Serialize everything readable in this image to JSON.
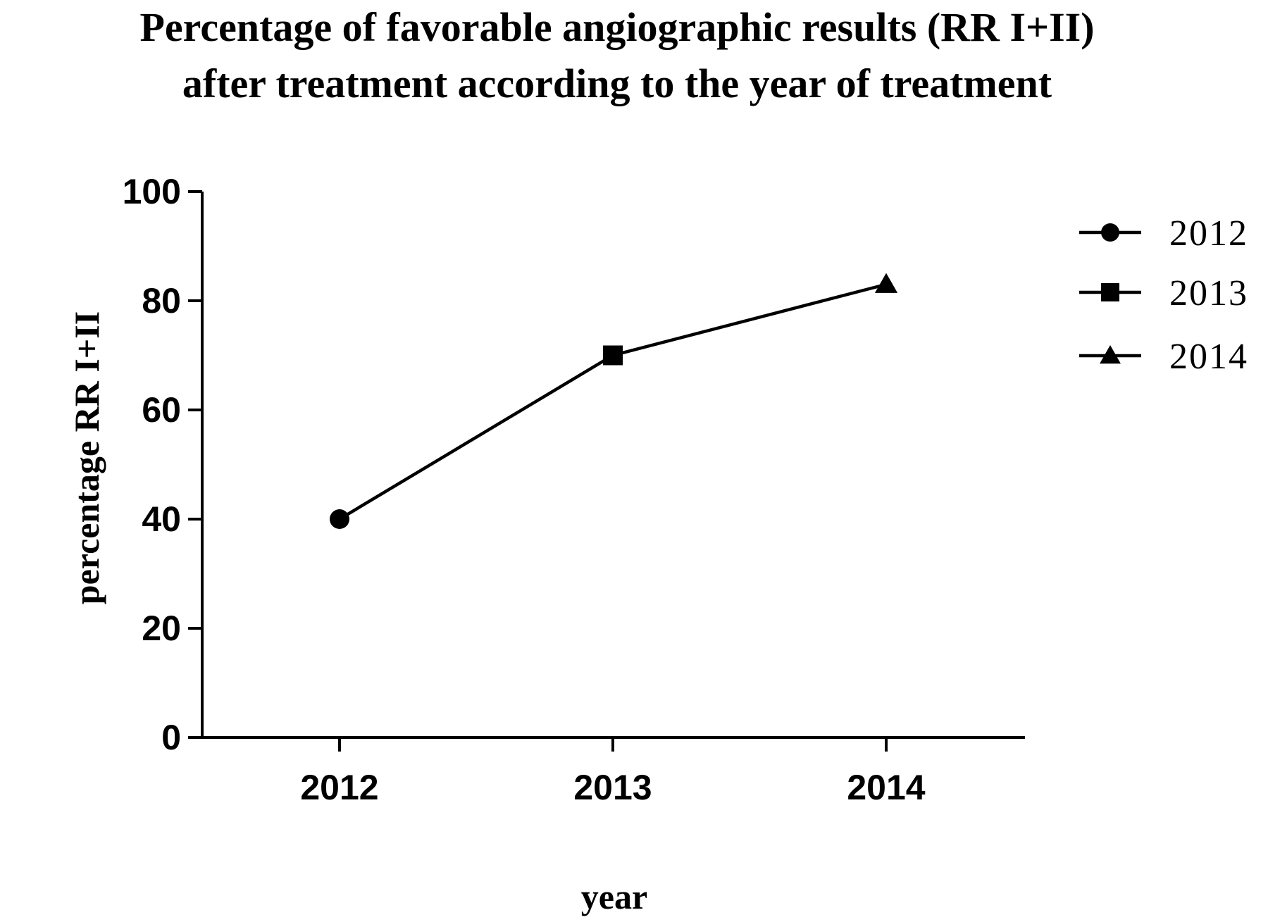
{
  "chart_data": {
    "type": "line",
    "title_lines": [
      "Percentage of favorable angiographic results (RR I+II)",
      "after treatment according to the year of treatment"
    ],
    "xlabel": "year",
    "ylabel": "percentage RR  I+II",
    "categories": [
      "2012",
      "2013",
      "2014"
    ],
    "values": [
      40,
      70,
      83
    ],
    "markers": [
      "circle",
      "square",
      "triangle"
    ],
    "ylim": [
      0,
      100
    ],
    "yticks": [
      0,
      20,
      40,
      60,
      80,
      100
    ],
    "ytick_labels": [
      "0",
      "20",
      "40",
      "60",
      "80",
      "100"
    ],
    "grid": false,
    "legend_position": "top-right",
    "legend": [
      {
        "label": "2012",
        "marker": "circle"
      },
      {
        "label": "2013",
        "marker": "square"
      },
      {
        "label": "2014",
        "marker": "triangle"
      }
    ],
    "color": "#000000"
  }
}
